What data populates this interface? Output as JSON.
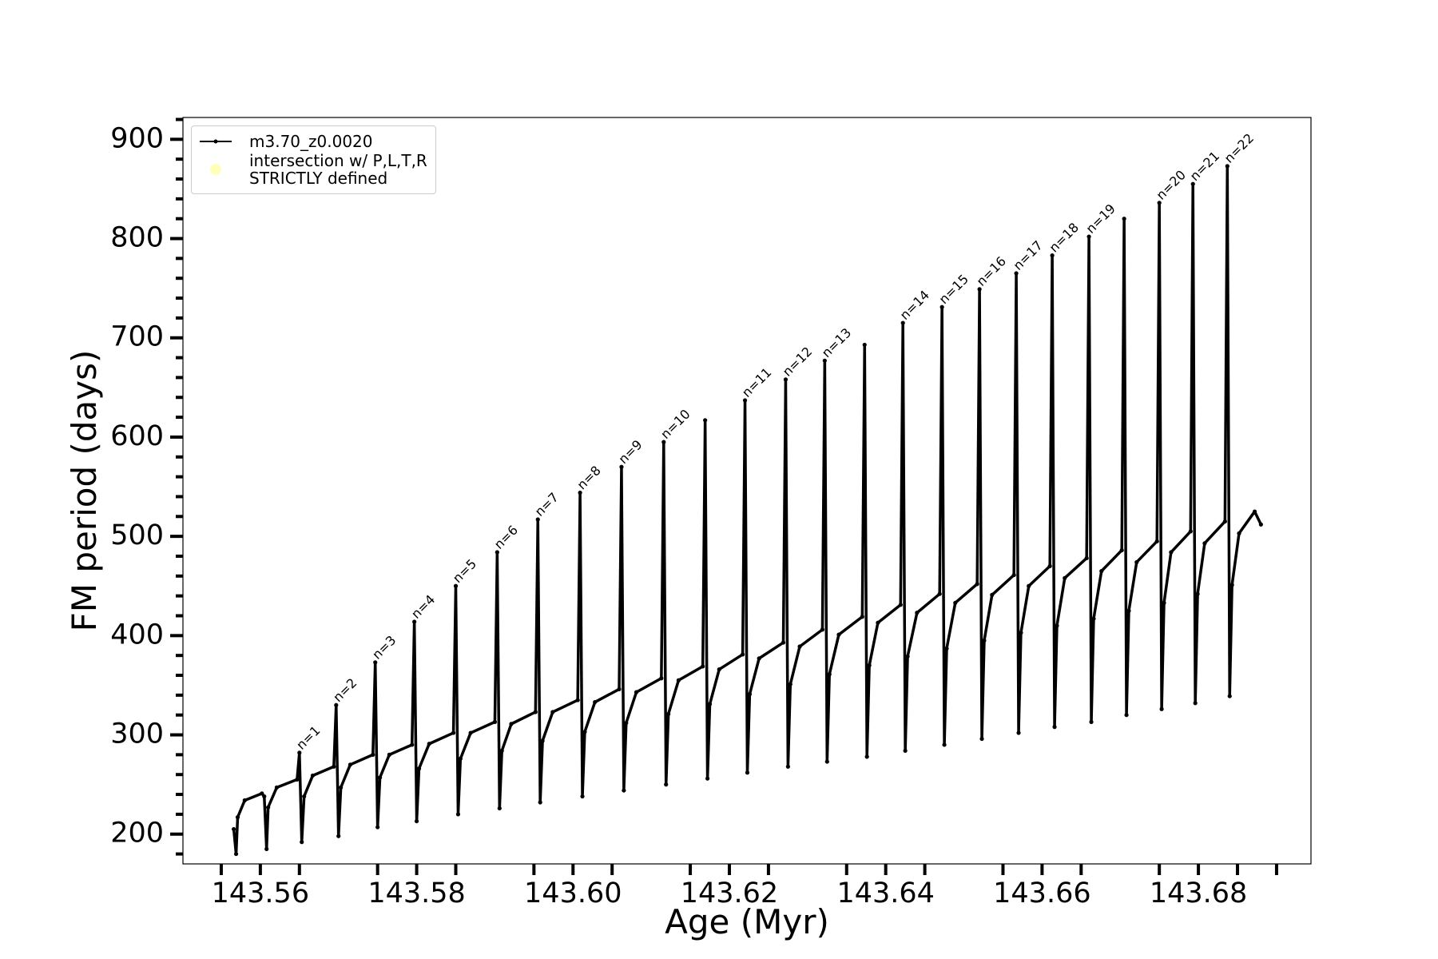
{
  "chart_data": {
    "type": "line",
    "xlabel": "Age (Myr)",
    "ylabel": "FM period (days)",
    "xlim": [
      143.5501,
      143.6944
    ],
    "ylim": [
      170,
      922
    ],
    "xticks": [
      143.56,
      143.58,
      {
        "value": 143.6,
        "label": "143.60"
      },
      143.62,
      143.64,
      143.66,
      143.68
    ],
    "xticks_minor": [
      143.555,
      143.565,
      143.575,
      143.585,
      143.595,
      143.605,
      143.615,
      143.625,
      143.635,
      143.645,
      143.655,
      143.665,
      143.675,
      143.685,
      143.69
    ],
    "yticks": [
      200,
      300,
      400,
      500,
      600,
      700,
      800,
      900
    ],
    "yticks_minor": [
      180,
      220,
      240,
      260,
      280,
      320,
      340,
      360,
      380,
      420,
      440,
      460,
      480,
      520,
      540,
      560,
      580,
      620,
      640,
      660,
      680,
      720,
      740,
      760,
      780,
      820,
      840,
      860,
      880,
      920
    ],
    "grid": false,
    "legend_loc": "upper left",
    "series": [
      {
        "name": "m3.70_z0.0020",
        "color": "#000000",
        "x": [
          143.5566,
          143.5569,
          143.5571,
          143.558,
          143.5602,
          143.5605,
          143.5608,
          143.561,
          143.5621,
          143.5647,
          143.565,
          143.5653,
          143.5656,
          143.5667,
          143.5694,
          143.5697,
          143.57,
          143.5703,
          143.5715,
          143.5744,
          143.5747,
          143.575,
          143.5753,
          143.5765,
          143.5794,
          143.5797,
          143.58,
          143.5803,
          143.5816,
          143.5847,
          143.585,
          143.5853,
          143.5856,
          143.5869,
          143.59,
          143.5903,
          143.5906,
          143.5909,
          143.5921,
          143.5952,
          143.5955,
          143.5958,
          143.5961,
          143.5974,
          143.6006,
          143.6009,
          143.6012,
          143.6015,
          143.6028,
          143.6059,
          143.6062,
          143.6065,
          143.6068,
          143.6081,
          143.6113,
          143.6116,
          143.6119,
          143.6122,
          143.6135,
          143.6166,
          143.6169,
          143.6172,
          143.6175,
          143.6187,
          143.6217,
          143.622,
          143.6223,
          143.6226,
          143.6238,
          143.6269,
          143.6272,
          143.6275,
          143.6278,
          143.629,
          143.6319,
          143.6322,
          143.6325,
          143.6328,
          143.634,
          143.637,
          143.6373,
          143.6376,
          143.6379,
          143.639,
          143.6419,
          143.6422,
          143.6425,
          143.6428,
          143.644,
          143.6469,
          143.6472,
          143.6475,
          143.6478,
          143.6489,
          143.6517,
          143.652,
          143.6523,
          143.6526,
          143.6536,
          143.6564,
          143.6567,
          143.657,
          143.6573,
          143.6583,
          143.661,
          143.6613,
          143.6616,
          143.6619,
          143.6629,
          143.6657,
          143.666,
          143.6663,
          143.6666,
          143.6676,
          143.6702,
          143.6705,
          143.6708,
          143.6711,
          143.6721,
          143.6747,
          143.675,
          143.6753,
          143.6756,
          143.6765,
          143.679,
          143.6793,
          143.6796,
          143.6799,
          143.6808,
          143.6834,
          143.6837,
          143.684,
          143.6843,
          143.6852,
          143.6872,
          143.688
        ],
        "values": [
          205,
          180,
          217,
          234,
          241,
          238,
          185,
          227,
          247,
          255,
          282,
          192,
          238,
          259,
          268,
          330,
          198,
          247,
          270,
          280,
          373,
          207,
          257,
          280,
          290,
          414,
          213,
          266,
          291,
          302,
          450,
          220,
          276,
          302,
          313,
          484,
          226,
          284,
          311,
          323,
          517,
          232,
          294,
          323,
          335,
          544,
          238,
          303,
          333,
          346,
          570,
          244,
          312,
          343,
          357,
          595,
          250,
          321,
          355,
          369,
          617,
          256,
          331,
          366,
          381,
          637,
          262,
          341,
          377,
          393,
          658,
          268,
          351,
          389,
          406,
          677,
          273,
          361,
          401,
          419,
          693,
          278,
          370,
          413,
          431,
          715,
          284,
          379,
          423,
          442,
          731,
          290,
          387,
          433,
          452,
          749,
          296,
          395,
          441,
          461,
          765,
          302,
          403,
          450,
          470,
          783,
          308,
          410,
          458,
          478,
          802,
          313,
          417,
          465,
          486,
          820,
          320,
          425,
          474,
          495,
          836,
          326,
          433,
          484,
          505,
          855,
          332,
          442,
          493,
          515,
          873,
          339,
          451,
          503,
          525,
          512
        ]
      },
      {
        "name": "intersection w/ P,L,T,R\nSTRICTLY defined",
        "color": "#ffffb0",
        "x": [],
        "values": []
      }
    ],
    "annotations": [
      {
        "text": "n=1",
        "x": 143.565,
        "y": 282
      },
      {
        "text": "n=2",
        "x": 143.5697,
        "y": 330
      },
      {
        "text": "n=3",
        "x": 143.5747,
        "y": 373
      },
      {
        "text": "n=4",
        "x": 143.5797,
        "y": 414
      },
      {
        "text": "n=5",
        "x": 143.585,
        "y": 450
      },
      {
        "text": "n=6",
        "x": 143.5903,
        "y": 484
      },
      {
        "text": "n=7",
        "x": 143.5955,
        "y": 517
      },
      {
        "text": "n=8",
        "x": 143.6009,
        "y": 544
      },
      {
        "text": "n=9",
        "x": 143.6062,
        "y": 570
      },
      {
        "text": "n=10",
        "x": 143.6116,
        "y": 595
      },
      {
        "text": "n=11",
        "x": 143.622,
        "y": 637
      },
      {
        "text": "n=12",
        "x": 143.6272,
        "y": 658
      },
      {
        "text": "n=13",
        "x": 143.6322,
        "y": 677
      },
      {
        "text": "n=14",
        "x": 143.6422,
        "y": 715
      },
      {
        "text": "n=15",
        "x": 143.6472,
        "y": 731
      },
      {
        "text": "n=16",
        "x": 143.652,
        "y": 749
      },
      {
        "text": "n=17",
        "x": 143.6567,
        "y": 765
      },
      {
        "text": "n=18",
        "x": 143.6613,
        "y": 783
      },
      {
        "text": "n=19",
        "x": 143.666,
        "y": 802
      },
      {
        "text": "n=20",
        "x": 143.675,
        "y": 836
      },
      {
        "text": "n=21",
        "x": 143.6793,
        "y": 855
      },
      {
        "text": "n=22",
        "x": 143.6837,
        "y": 873
      }
    ]
  }
}
